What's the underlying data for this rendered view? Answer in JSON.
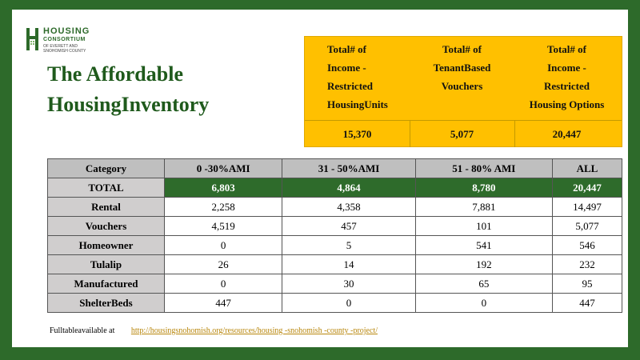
{
  "logo": {
    "line1": "HOUSING",
    "line2": "CONSORTIUM",
    "line3": "OF EVERETT AND SNOHOMISH COUNTY"
  },
  "title": {
    "line1_a": "The",
    "line1_b": "Affordable",
    "line2": "HousingInventory"
  },
  "summary": {
    "headers": [
      [
        "Total#   of",
        "Income   -",
        "Restricted",
        "HousingUnits"
      ],
      [
        "Total#   of",
        "TenantBased",
        "Vouchers"
      ],
      [
        "Total#   of",
        "Income   -",
        "Restricted",
        "Housing   Options"
      ]
    ],
    "values": [
      "15,370",
      "5,077",
      "20,447"
    ]
  },
  "table": {
    "columns": [
      "Category",
      "0 -30%AMI",
      "31 - 50%AMI",
      "51 - 80%   AMI",
      "ALL"
    ],
    "rows": [
      {
        "category": "TOTAL",
        "values": [
          "6,803",
          "4,864",
          "8,780",
          "20,447"
        ]
      },
      {
        "category": "Rental",
        "values": [
          "2,258",
          "4,358",
          "7,881",
          "14,497"
        ]
      },
      {
        "category": "Vouchers",
        "values": [
          "4,519",
          "457",
          "101",
          "5,077"
        ]
      },
      {
        "category": "Homeowner",
        "values": [
          "0",
          "5",
          "541",
          "546"
        ]
      },
      {
        "category": "Tulalip",
        "values": [
          "26",
          "14",
          "192",
          "232"
        ]
      },
      {
        "category": "Manufactured",
        "values": [
          "0",
          "30",
          "65",
          "95"
        ]
      },
      {
        "category": "ShelterBeds",
        "values": [
          "447",
          "0",
          "0",
          "447"
        ]
      }
    ]
  },
  "footer": {
    "text": "Fulltableavailable    at",
    "link": "http://housingsnohomish.org/resources/housing               -snohomish   -county  -project/"
  }
}
